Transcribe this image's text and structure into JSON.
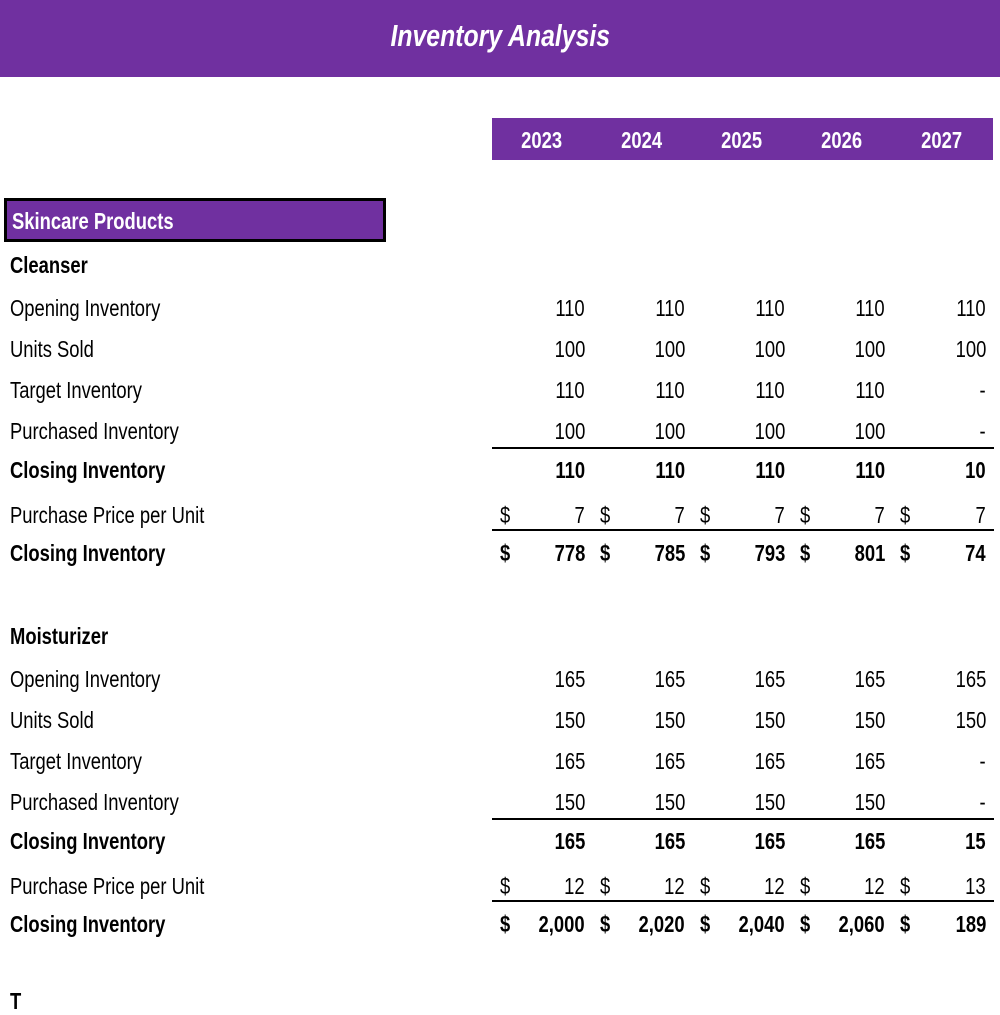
{
  "title": "Inventory Analysis",
  "years": [
    "2023",
    "2024",
    "2025",
    "2026",
    "2027"
  ],
  "section": "Skincare Products",
  "products": [
    {
      "name": "Cleanser",
      "rows": [
        {
          "label": "Opening Inventory",
          "values": [
            "110",
            "110",
            "110",
            "110",
            "110"
          ]
        },
        {
          "label": "Units Sold",
          "values": [
            "100",
            "100",
            "100",
            "100",
            "100"
          ]
        },
        {
          "label": "Target Inventory",
          "values": [
            "110",
            "110",
            "110",
            "110",
            "-"
          ]
        },
        {
          "label": "Purchased Inventory",
          "values": [
            "100",
            "100",
            "100",
            "100",
            "-"
          ]
        },
        {
          "label": "Closing Inventory",
          "values": [
            "110",
            "110",
            "110",
            "110",
            "10"
          ],
          "bold": true
        },
        {
          "label": "Purchase Price per Unit",
          "values": [
            "7",
            "7",
            "7",
            "7",
            "7"
          ],
          "currency": "$"
        },
        {
          "label": "Closing Inventory",
          "values": [
            "778",
            "785",
            "793",
            "801",
            "74"
          ],
          "currency": "$",
          "bold": true
        }
      ]
    },
    {
      "name": "Moisturizer",
      "rows": [
        {
          "label": "Opening Inventory",
          "values": [
            "165",
            "165",
            "165",
            "165",
            "165"
          ]
        },
        {
          "label": "Units Sold",
          "values": [
            "150",
            "150",
            "150",
            "150",
            "150"
          ]
        },
        {
          "label": "Target Inventory",
          "values": [
            "165",
            "165",
            "165",
            "165",
            "-"
          ]
        },
        {
          "label": "Purchased Inventory",
          "values": [
            "150",
            "150",
            "150",
            "150",
            "-"
          ]
        },
        {
          "label": "Closing Inventory",
          "values": [
            "165",
            "165",
            "165",
            "165",
            "15"
          ],
          "bold": true
        },
        {
          "label": "Purchase Price per Unit",
          "values": [
            "12",
            "12",
            "12",
            "12",
            "13"
          ],
          "currency": "$"
        },
        {
          "label": "Closing Inventory",
          "values": [
            "2,000",
            "2,020",
            "2,040",
            "2,060",
            "189"
          ],
          "currency": "$",
          "bold": true
        }
      ]
    }
  ],
  "next_product_partial": "T",
  "colors": {
    "accent": "#7030A0"
  }
}
